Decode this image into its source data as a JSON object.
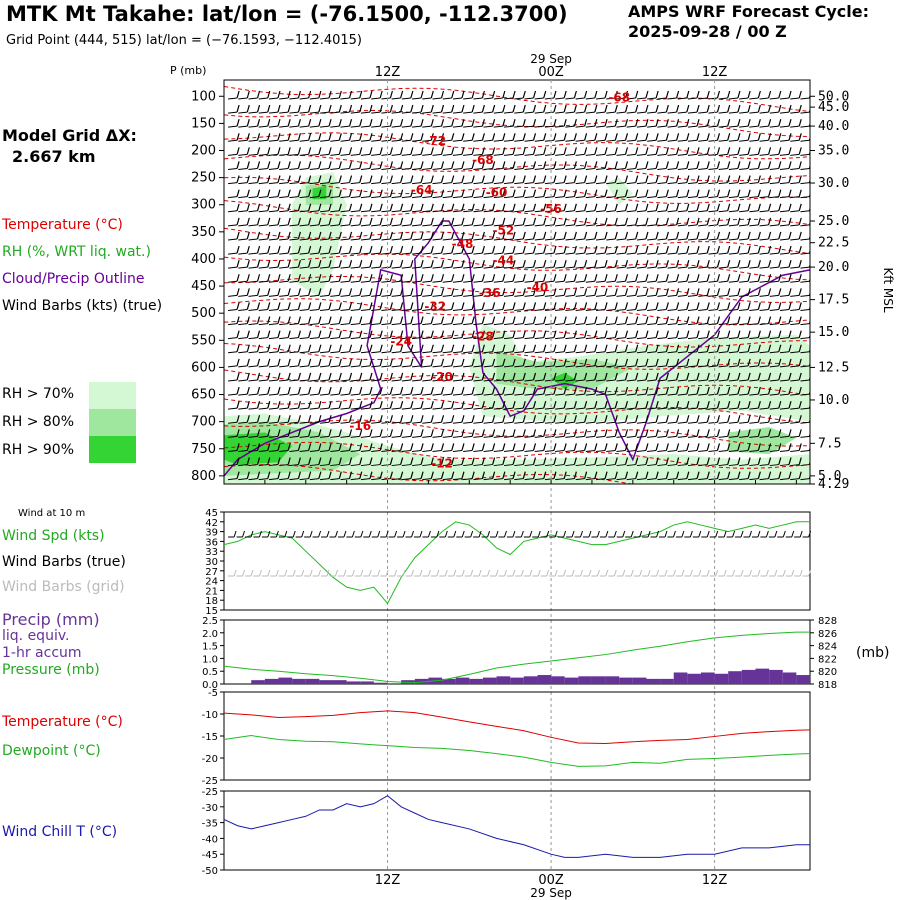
{
  "header": {
    "title": "MTK Mt Takahe:  lat/lon = (-76.1500, -112.3700)",
    "grid_point": "Grid Point (444, 515) lat/lon = (−76.1593, −112.4015)",
    "cycle_label": "AMPS WRF Forecast Cycle:",
    "cycle_value": "2025-09-28 / 00  Z",
    "model_grid": "Model Grid ΔX:",
    "model_dx": "2.667 km"
  },
  "legend": {
    "temperature": "Temperature (°C)",
    "rh": "RH (%, WRT liq. wat.)",
    "cloud": "Cloud/Precip Outline",
    "wind": "Wind Barbs (kts) (true)",
    "rh70": "RH > 70%",
    "rh80": "RH > 80%",
    "rh90": "RH > 90%",
    "rh_colors": [
      "#d4f7d4",
      "#9fe69f",
      "#33d433"
    ],
    "temp_color": "#dd0000",
    "cloud_color": "#660099"
  },
  "time_axis": {
    "day_label": "29 Sep",
    "ticks": [
      {
        "label": "12Z",
        "hour": 12
      },
      {
        "label": "00Z",
        "hour": 24
      },
      {
        "label": "12Z",
        "hour": 36
      }
    ],
    "hour_range": [
      0,
      43
    ]
  },
  "chart_data": [
    {
      "type": "heatmap",
      "panel": "time-height cross-section",
      "ylabel": "P (mb)",
      "ylabel_right": "Kft MSL",
      "pressure_ticks": [
        100,
        150,
        200,
        250,
        300,
        350,
        400,
        450,
        500,
        550,
        600,
        650,
        700,
        750,
        800
      ],
      "kft_ticks": [
        {
          "label": "50.0",
          "p": 100
        },
        {
          "label": "45.0",
          "p": 120
        },
        {
          "label": "40.0",
          "p": 155
        },
        {
          "label": "35.0",
          "p": 200
        },
        {
          "label": "30.0",
          "p": 260
        },
        {
          "label": "25.0",
          "p": 330
        },
        {
          "label": "22.5",
          "p": 370
        },
        {
          "label": "20.0",
          "p": 415
        },
        {
          "label": "17.5",
          "p": 475
        },
        {
          "label": "15.0",
          "p": 535
        },
        {
          "label": "12.5",
          "p": 600
        },
        {
          "label": "10.0",
          "p": 660
        },
        {
          "label": "7.5",
          "p": 740
        },
        {
          "label": "5.0",
          "p": 800
        },
        {
          "label": "4.29",
          "p": 815
        }
      ],
      "temperature_labels": [
        {
          "text": "-68",
          "hour": 29,
          "p": 110
        },
        {
          "text": "-72",
          "hour": 15.5,
          "p": 190
        },
        {
          "text": "-68",
          "hour": 19,
          "p": 225
        },
        {
          "text": "-64",
          "hour": 14.5,
          "p": 280
        },
        {
          "text": "-60",
          "hour": 20,
          "p": 285
        },
        {
          "text": "-56",
          "hour": 24,
          "p": 315
        },
        {
          "text": "-52",
          "hour": 20.5,
          "p": 355
        },
        {
          "text": "-48",
          "hour": 17.5,
          "p": 380
        },
        {
          "text": "-44",
          "hour": 20.5,
          "p": 410
        },
        {
          "text": "-40",
          "hour": 23,
          "p": 460
        },
        {
          "text": "-36",
          "hour": 19.5,
          "p": 470
        },
        {
          "text": "-32",
          "hour": 15.5,
          "p": 495
        },
        {
          "text": "-28",
          "hour": 19,
          "p": 550
        },
        {
          "text": "-24",
          "hour": 13,
          "p": 560
        },
        {
          "text": "-20",
          "hour": 16,
          "p": 625
        },
        {
          "text": "-16",
          "hour": 10,
          "p": 715
        },
        {
          "text": "-12",
          "hour": 16,
          "p": 785
        }
      ]
    },
    {
      "type": "line",
      "panel": "wind-10m",
      "panel_label": "Wind at 10 m",
      "labels": [
        "Wind Spd (kts)",
        "Wind Barbs (true)",
        "Wind Barbs (grid)"
      ],
      "ylim": [
        15,
        45
      ],
      "yticks": [
        15,
        18,
        21,
        24,
        27,
        30,
        33,
        36,
        39,
        42,
        45
      ],
      "series": [
        {
          "name": "Wind Spd (kts)",
          "color": "#22bb22",
          "x": [
            0,
            1,
            2,
            3,
            4,
            5,
            6,
            7,
            8,
            9,
            10,
            11,
            12,
            13,
            14,
            15,
            16,
            17,
            18,
            19,
            20,
            21,
            22,
            23,
            24,
            25,
            26,
            27,
            28,
            29,
            30,
            31,
            32,
            33,
            34,
            35,
            36,
            37,
            38,
            39,
            40,
            41,
            42,
            43
          ],
          "y": [
            35,
            36,
            38,
            39,
            38,
            37,
            33,
            29,
            25,
            22,
            21,
            22,
            17,
            25,
            31,
            35,
            39,
            42,
            41,
            38,
            34,
            32,
            36,
            37,
            38,
            37,
            36,
            35,
            35,
            36,
            37,
            38,
            39,
            41,
            42,
            41,
            40,
            39,
            40,
            41,
            40,
            41,
            42,
            42
          ]
        }
      ]
    },
    {
      "type": "bar",
      "panel": "precip-pressure",
      "labels": [
        "Precip (mm)",
        "liq. equiv.",
        "1-hr accum",
        "Pressure (mb)"
      ],
      "ylim": [
        0,
        2.5
      ],
      "yticks": [
        0.0,
        0.5,
        1.0,
        1.5,
        2.0,
        2.5
      ],
      "y2lim": [
        818,
        828
      ],
      "y2ticks": [
        818,
        820,
        822,
        824,
        826,
        828
      ],
      "y2label": "(mb)",
      "series": [
        {
          "name": "Precip (mm)",
          "color": "#663399",
          "x": [
            0,
            1,
            2,
            3,
            4,
            5,
            6,
            7,
            8,
            9,
            10,
            11,
            12,
            13,
            14,
            15,
            16,
            17,
            18,
            19,
            20,
            21,
            22,
            23,
            24,
            25,
            26,
            27,
            28,
            29,
            30,
            31,
            32,
            33,
            34,
            35,
            36,
            37,
            38,
            39,
            40,
            41,
            42
          ],
          "values": [
            0.0,
            0.0,
            0.15,
            0.2,
            0.25,
            0.2,
            0.2,
            0.15,
            0.15,
            0.1,
            0.1,
            0.05,
            0.0,
            0.15,
            0.2,
            0.25,
            0.2,
            0.25,
            0.2,
            0.25,
            0.3,
            0.25,
            0.3,
            0.35,
            0.3,
            0.25,
            0.3,
            0.3,
            0.3,
            0.25,
            0.25,
            0.2,
            0.2,
            0.45,
            0.4,
            0.45,
            0.4,
            0.5,
            0.55,
            0.6,
            0.55,
            0.45,
            0.35
          ]
        },
        {
          "name": "Pressure (mb)",
          "color": "#22bb22",
          "axis": "right",
          "x": [
            0,
            2,
            4,
            6,
            8,
            10,
            12,
            14,
            16,
            18,
            20,
            22,
            24,
            26,
            28,
            30,
            32,
            34,
            36,
            38,
            40,
            42,
            43
          ],
          "values": [
            820.8,
            820.3,
            820.0,
            819.6,
            819.3,
            818.9,
            818.4,
            818.2,
            818.6,
            819.5,
            820.5,
            821.1,
            821.6,
            822.1,
            822.6,
            823.3,
            823.9,
            824.6,
            825.2,
            825.6,
            825.9,
            826.1,
            826.1
          ]
        }
      ]
    },
    {
      "type": "line",
      "panel": "temperature-dewpoint",
      "labels": [
        "Temperature (°C)",
        "Dewpoint (°C)"
      ],
      "ylim": [
        -25,
        -5
      ],
      "yticks": [
        -5,
        -10,
        -15,
        -20,
        -25
      ],
      "series": [
        {
          "name": "Temperature (°C)",
          "color": "#dd0000",
          "x": [
            0,
            2,
            4,
            6,
            8,
            10,
            12,
            14,
            16,
            18,
            20,
            22,
            24,
            26,
            28,
            30,
            32,
            34,
            36,
            38,
            40,
            42,
            43
          ],
          "y": [
            -9.8,
            -10.2,
            -10.8,
            -10.6,
            -10.3,
            -9.7,
            -9.3,
            -9.7,
            -10.7,
            -11.8,
            -12.8,
            -13.8,
            -15.3,
            -16.6,
            -16.7,
            -16.3,
            -16.0,
            -15.8,
            -15.1,
            -14.4,
            -14.0,
            -13.7,
            -13.6
          ]
        },
        {
          "name": "Dewpoint (°C)",
          "color": "#22bb22",
          "x": [
            0,
            2,
            4,
            6,
            8,
            10,
            12,
            14,
            16,
            18,
            20,
            22,
            24,
            26,
            28,
            30,
            32,
            34,
            36,
            38,
            40,
            42,
            43
          ],
          "y": [
            -15.8,
            -14.9,
            -15.8,
            -16.2,
            -16.3,
            -16.8,
            -17.2,
            -17.6,
            -17.8,
            -18.3,
            -19.0,
            -19.8,
            -21.0,
            -21.9,
            -21.8,
            -21.0,
            -21.2,
            -20.3,
            -20.1,
            -19.8,
            -19.4,
            -19.1,
            -19.0
          ]
        }
      ]
    },
    {
      "type": "line",
      "panel": "wind-chill",
      "labels": [
        "Wind Chill T (°C)"
      ],
      "ylim": [
        -50,
        -25
      ],
      "yticks": [
        -25,
        -30,
        -35,
        -40,
        -45,
        -50
      ],
      "series": [
        {
          "name": "Wind Chill T (°C)",
          "color": "#1a1aaa",
          "x": [
            0,
            1,
            2,
            3,
            4,
            5,
            6,
            7,
            8,
            9,
            10,
            11,
            12,
            13,
            14,
            15,
            16,
            18,
            20,
            22,
            24,
            25,
            26,
            28,
            30,
            32,
            34,
            36,
            38,
            40,
            42,
            43
          ],
          "y": [
            -34,
            -36,
            -37,
            -36,
            -35,
            -34,
            -33,
            -31,
            -31,
            -29,
            -30,
            -29,
            -26.5,
            -30,
            -32,
            -34,
            -35,
            -37,
            -40,
            -42,
            -45,
            -46,
            -46,
            -45,
            -46,
            -46,
            -45,
            -45,
            -43,
            -43,
            -42,
            -42
          ]
        }
      ]
    }
  ]
}
